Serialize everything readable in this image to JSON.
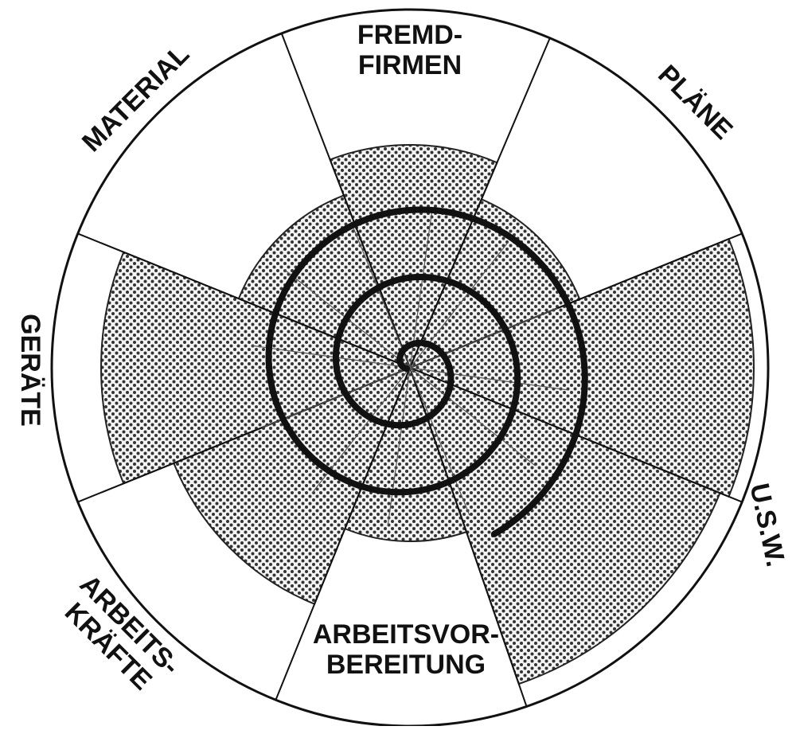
{
  "sectors": [
    {
      "label": [
        "FREMD-",
        "FIRMEN"
      ]
    },
    {
      "label": [
        "PLÄNE"
      ]
    },
    {
      "label": []
    },
    {
      "label": [
        "U.S.W."
      ]
    },
    {
      "label": [
        "ARBEITSVOR-",
        "BEREITUNG"
      ]
    },
    {
      "label": [
        "ARBEITS-",
        "KRÄFTE"
      ]
    },
    {
      "label": [
        "GERÄTE"
      ]
    },
    {
      "label": [
        "MATERIAL"
      ]
    }
  ]
}
